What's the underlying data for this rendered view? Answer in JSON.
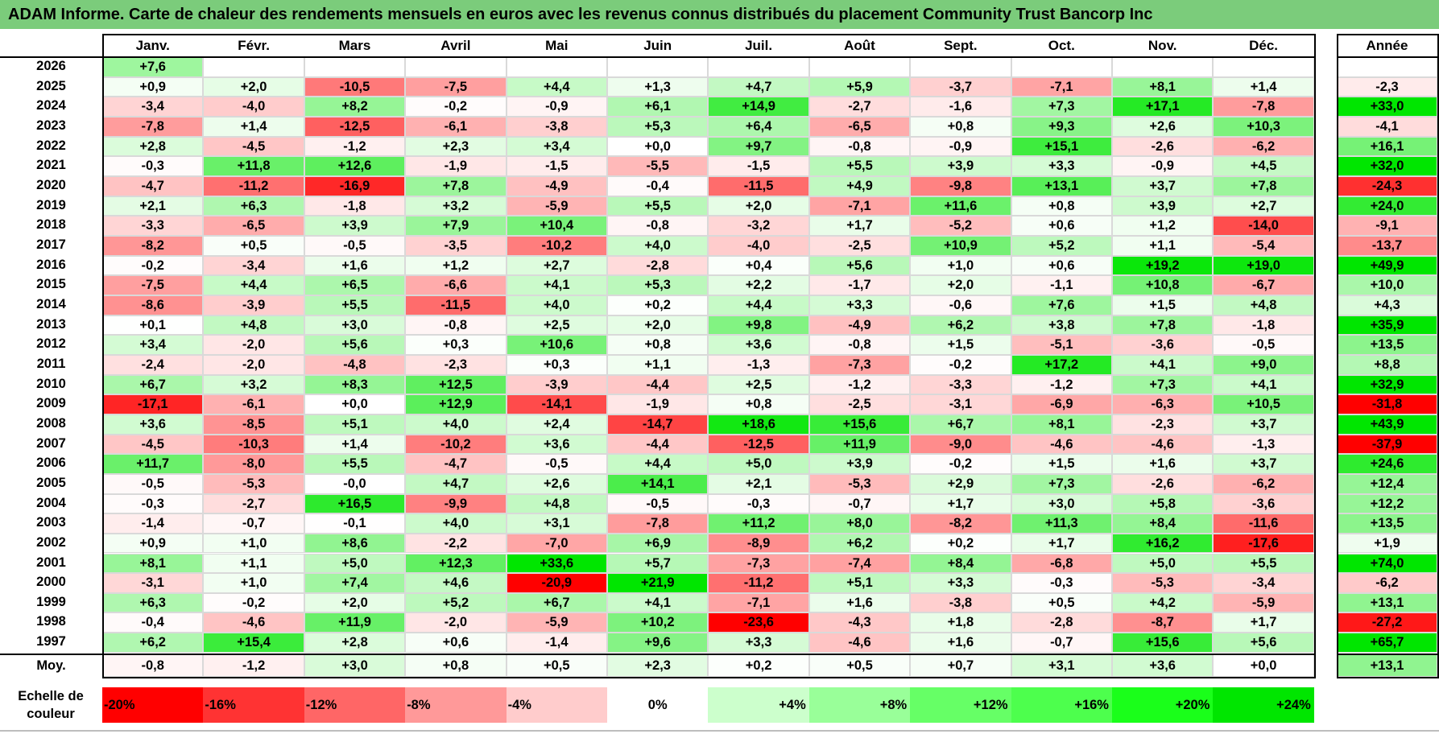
{
  "title": "ADAM Informe. Carte de chaleur des rendements mensuels en euros avec les revenus connus distribués du placement Community Trust Bancorp Inc",
  "chart_data": {
    "type": "heatmap",
    "columns": [
      "Janv.",
      "Févr.",
      "Mars",
      "Avril",
      "Mai",
      "Juin",
      "Juil.",
      "Août",
      "Sept.",
      "Oct.",
      "Nov.",
      "Déc."
    ],
    "year_column_label": "Année",
    "rows": [
      {
        "year": "2026",
        "months": [
          "+7,6",
          null,
          null,
          null,
          null,
          null,
          null,
          null,
          null,
          null,
          null,
          null
        ],
        "total": ""
      },
      {
        "year": "2025",
        "months": [
          "+0,9",
          "+2,0",
          "-10,5",
          "-7,5",
          "+4,4",
          "+1,3",
          "+4,7",
          "+5,9",
          "-3,7",
          "-7,1",
          "+8,1",
          "+1,4"
        ],
        "total": "-2,3"
      },
      {
        "year": "2024",
        "months": [
          "-3,4",
          "-4,0",
          "+8,2",
          "-0,2",
          "-0,9",
          "+6,1",
          "+14,9",
          "-2,7",
          "-1,6",
          "+7,3",
          "+17,1",
          "-7,8"
        ],
        "total": "+33,0"
      },
      {
        "year": "2023",
        "months": [
          "-7,8",
          "+1,4",
          "-12,5",
          "-6,1",
          "-3,8",
          "+5,3",
          "+6,4",
          "-6,5",
          "+0,8",
          "+9,3",
          "+2,6",
          "+10,3"
        ],
        "total": "-4,1"
      },
      {
        "year": "2022",
        "months": [
          "+2,8",
          "-4,5",
          "-1,2",
          "+2,3",
          "+3,4",
          "+0,0",
          "+9,7",
          "-0,8",
          "-0,9",
          "+15,1",
          "-2,6",
          "-6,2"
        ],
        "total": "+16,1"
      },
      {
        "year": "2021",
        "months": [
          "-0,3",
          "+11,8",
          "+12,6",
          "-1,9",
          "-1,5",
          "-5,5",
          "-1,5",
          "+5,5",
          "+3,9",
          "+3,3",
          "-0,9",
          "+4,5"
        ],
        "total": "+32,0"
      },
      {
        "year": "2020",
        "months": [
          "-4,7",
          "-11,2",
          "-16,9",
          "+7,8",
          "-4,9",
          "-0,4",
          "-11,5",
          "+4,9",
          "-9,8",
          "+13,1",
          "+3,7",
          "+7,8"
        ],
        "total": "-24,3"
      },
      {
        "year": "2019",
        "months": [
          "+2,1",
          "+6,3",
          "-1,8",
          "+3,2",
          "-5,9",
          "+5,5",
          "+2,0",
          "-7,1",
          "+11,6",
          "+0,8",
          "+3,9",
          "+2,7"
        ],
        "total": "+24,0"
      },
      {
        "year": "2018",
        "months": [
          "-3,3",
          "-6,5",
          "+3,9",
          "+7,9",
          "+10,4",
          "-0,8",
          "-3,2",
          "+1,7",
          "-5,2",
          "+0,6",
          "+1,2",
          "-14,0"
        ],
        "total": "-9,1"
      },
      {
        "year": "2017",
        "months": [
          "-8,2",
          "+0,5",
          "-0,5",
          "-3,5",
          "-10,2",
          "+4,0",
          "-4,0",
          "-2,5",
          "+10,9",
          "+5,2",
          "+1,1",
          "-5,4"
        ],
        "total": "-13,7"
      },
      {
        "year": "2016",
        "months": [
          "-0,2",
          "-3,4",
          "+1,6",
          "+1,2",
          "+2,7",
          "-2,8",
          "+0,4",
          "+5,6",
          "+1,0",
          "+0,6",
          "+19,2",
          "+19,0"
        ],
        "total": "+49,9"
      },
      {
        "year": "2015",
        "months": [
          "-7,5",
          "+4,4",
          "+6,5",
          "-6,6",
          "+4,1",
          "+5,3",
          "+2,2",
          "-1,7",
          "+2,0",
          "-1,1",
          "+10,8",
          "-6,7"
        ],
        "total": "+10,0"
      },
      {
        "year": "2014",
        "months": [
          "-8,6",
          "-3,9",
          "+5,5",
          "-11,5",
          "+4,0",
          "+0,2",
          "+4,4",
          "+3,3",
          "-0,6",
          "+7,6",
          "+1,5",
          "+4,8"
        ],
        "total": "+4,3"
      },
      {
        "year": "2013",
        "months": [
          "+0,1",
          "+4,8",
          "+3,0",
          "-0,8",
          "+2,5",
          "+2,0",
          "+9,8",
          "-4,9",
          "+6,2",
          "+3,8",
          "+7,8",
          "-1,8"
        ],
        "total": "+35,9"
      },
      {
        "year": "2012",
        "months": [
          "+3,4",
          "-2,0",
          "+5,6",
          "+0,3",
          "+10,6",
          "+0,8",
          "+3,6",
          "-0,8",
          "+1,5",
          "-5,1",
          "-3,6",
          "-0,5"
        ],
        "total": "+13,5"
      },
      {
        "year": "2011",
        "months": [
          "-2,4",
          "-2,0",
          "-4,8",
          "-2,3",
          "+0,3",
          "+1,1",
          "-1,3",
          "-7,3",
          "-0,2",
          "+17,2",
          "+4,1",
          "+9,0"
        ],
        "total": "+8,8"
      },
      {
        "year": "2010",
        "months": [
          "+6,7",
          "+3,2",
          "+8,3",
          "+12,5",
          "-3,9",
          "-4,4",
          "+2,5",
          "-1,2",
          "-3,3",
          "-1,2",
          "+7,3",
          "+4,1"
        ],
        "total": "+32,9"
      },
      {
        "year": "2009",
        "months": [
          "-17,1",
          "-6,1",
          "+0,0",
          "+12,9",
          "-14,1",
          "-1,9",
          "+0,8",
          "-2,5",
          "-3,1",
          "-6,9",
          "-6,3",
          "+10,5"
        ],
        "total": "-31,8"
      },
      {
        "year": "2008",
        "months": [
          "+3,6",
          "-8,5",
          "+5,1",
          "+4,0",
          "+2,4",
          "-14,7",
          "+18,6",
          "+15,6",
          "+6,7",
          "+8,1",
          "-2,3",
          "+3,7"
        ],
        "total": "+43,9"
      },
      {
        "year": "2007",
        "months": [
          "-4,5",
          "-10,3",
          "+1,4",
          "-10,2",
          "+3,6",
          "-4,4",
          "-12,5",
          "+11,9",
          "-9,0",
          "-4,6",
          "-4,6",
          "-1,3"
        ],
        "total": "-37,9"
      },
      {
        "year": "2006",
        "months": [
          "+11,7",
          "-8,0",
          "+5,5",
          "-4,7",
          "-0,5",
          "+4,4",
          "+5,0",
          "+3,9",
          "-0,2",
          "+1,5",
          "+1,6",
          "+3,7"
        ],
        "total": "+24,6"
      },
      {
        "year": "2005",
        "months": [
          "-0,5",
          "-5,3",
          "-0,0",
          "+4,7",
          "+2,6",
          "+14,1",
          "+2,1",
          "-5,3",
          "+2,9",
          "+7,3",
          "-2,6",
          "-6,2"
        ],
        "total": "+12,4"
      },
      {
        "year": "2004",
        "months": [
          "-0,3",
          "-2,7",
          "+16,5",
          "-9,9",
          "+4,8",
          "-0,5",
          "-0,3",
          "-0,7",
          "+1,7",
          "+3,0",
          "+5,8",
          "-3,6"
        ],
        "total": "+12,2"
      },
      {
        "year": "2003",
        "months": [
          "-1,4",
          "-0,7",
          "-0,1",
          "+4,0",
          "+3,1",
          "-7,8",
          "+11,2",
          "+8,0",
          "-8,2",
          "+11,3",
          "+8,4",
          "-11,6"
        ],
        "total": "+13,5"
      },
      {
        "year": "2002",
        "months": [
          "+0,9",
          "+1,0",
          "+8,6",
          "-2,2",
          "-7,0",
          "+6,9",
          "-8,9",
          "+6,2",
          "+0,2",
          "+1,7",
          "+16,2",
          "-17,6"
        ],
        "total": "+1,9"
      },
      {
        "year": "2001",
        "months": [
          "+8,1",
          "+1,1",
          "+5,0",
          "+12,3",
          "+33,6",
          "+5,7",
          "-7,3",
          "-7,4",
          "+8,4",
          "-6,8",
          "+5,0",
          "+5,5"
        ],
        "total": "+74,0"
      },
      {
        "year": "2000",
        "months": [
          "-3,1",
          "+1,0",
          "+7,4",
          "+4,6",
          "-20,9",
          "+21,9",
          "-11,2",
          "+5,1",
          "+3,3",
          "-0,3",
          "-5,3",
          "-3,4"
        ],
        "total": "-6,2"
      },
      {
        "year": "1999",
        "months": [
          "+6,3",
          "-0,2",
          "+2,0",
          "+5,2",
          "+6,7",
          "+4,1",
          "-7,1",
          "+1,6",
          "-3,8",
          "+0,5",
          "+4,2",
          "-5,9"
        ],
        "total": "+13,1"
      },
      {
        "year": "1998",
        "months": [
          "-0,4",
          "-4,6",
          "+11,9",
          "-2,0",
          "-5,9",
          "+10,2",
          "-23,6",
          "-4,3",
          "+1,8",
          "-2,8",
          "-8,7",
          "+1,7"
        ],
        "total": "-27,2"
      },
      {
        "year": "1997",
        "months": [
          "+6,2",
          "+15,4",
          "+2,8",
          "+0,6",
          "-1,4",
          "+9,6",
          "+3,3",
          "-4,6",
          "+1,6",
          "-0,7",
          "+15,6",
          "+5,6"
        ],
        "total": "+65,7"
      }
    ],
    "average": {
      "label": "Moy.",
      "months": [
        "-0,8",
        "-1,2",
        "+3,0",
        "+0,8",
        "+0,5",
        "+2,3",
        "+0,2",
        "+0,5",
        "+0,7",
        "+3,1",
        "+3,6",
        "+0,0"
      ],
      "total": "+13,1"
    },
    "scale": {
      "label_line1": "Echelle de",
      "label_line2": "couleur",
      "steps": [
        {
          "label": "-20%",
          "value": -20,
          "color": "#ff0000"
        },
        {
          "label": "-16%",
          "value": -16,
          "color": "#ff3333"
        },
        {
          "label": "-12%",
          "value": -12,
          "color": "#ff6666"
        },
        {
          "label": "-8%",
          "value": -8,
          "color": "#ff9999"
        },
        {
          "label": "-4%",
          "value": -4,
          "color": "#ffcccc"
        },
        {
          "label": "0%",
          "value": 0,
          "color": "#ffffff"
        },
        {
          "label": "+4%",
          "value": 4,
          "color": "#ccffcc"
        },
        {
          "label": "+8%",
          "value": 8,
          "color": "#99ff99"
        },
        {
          "label": "+12%",
          "value": 12,
          "color": "#66ff66"
        },
        {
          "label": "+16%",
          "value": 16,
          "color": "#4dff4d"
        },
        {
          "label": "+20%",
          "value": 20,
          "color": "#1aff1a"
        },
        {
          "label": "+24%",
          "value": 24,
          "color": "#00e600"
        }
      ]
    }
  }
}
